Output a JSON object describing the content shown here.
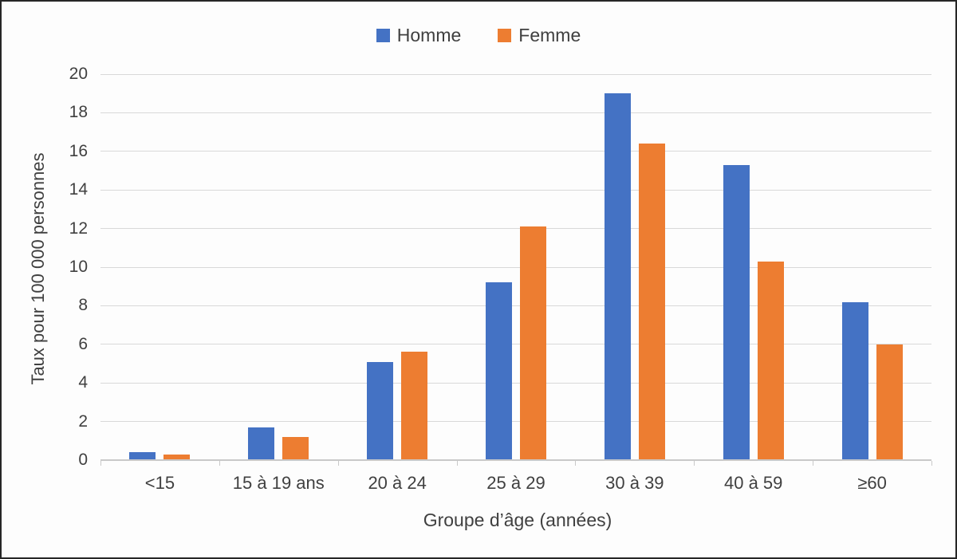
{
  "figure": {
    "background": "#fdfdfd",
    "border_color": "#262626",
    "text_color": "#404040",
    "gridline_color": "#d9d9d9",
    "axis_color": "#c9c9c9"
  },
  "legend": {
    "position": "top",
    "items": [
      {
        "label": "Homme",
        "color": "#4472C4",
        "icon": "square-swatch"
      },
      {
        "label": "Femme",
        "color": "#ED7D31",
        "icon": "square-swatch"
      }
    ]
  },
  "chart_data": {
    "type": "bar",
    "title": "",
    "categories": [
      "<15",
      "15 à 19 ans",
      "20 à 24",
      "25 à 29",
      "30 à 39",
      "40 à 59",
      "≥60"
    ],
    "series": [
      {
        "name": "Homme",
        "color": "#4472C4",
        "values": [
          0.4,
          1.7,
          5.1,
          9.2,
          19.0,
          15.3,
          8.2
        ]
      },
      {
        "name": "Femme",
        "color": "#ED7D31",
        "values": [
          0.3,
          1.2,
          5.6,
          12.1,
          16.4,
          10.3,
          6.0
        ]
      }
    ],
    "xlabel": "Groupe d’âge (années)",
    "ylabel": "Taux pour 100 000 personnes",
    "ylim": [
      0,
      20
    ],
    "ytick_step": 2,
    "yticks": [
      0,
      2,
      4,
      6,
      8,
      10,
      12,
      14,
      16,
      18,
      20
    ],
    "grid": true,
    "legend_position": "top"
  }
}
